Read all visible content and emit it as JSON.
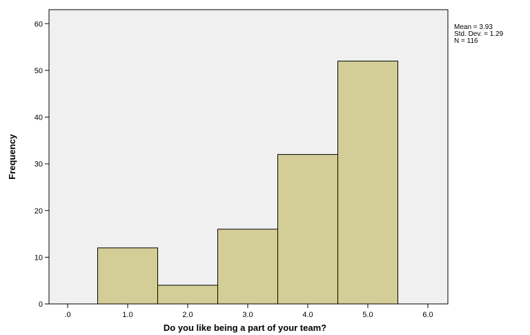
{
  "chart_data": {
    "type": "bar",
    "title": "",
    "xlabel": "Do you like being a part of your team?",
    "ylabel": "Frequency",
    "categories": [
      "1.0",
      "2.0",
      "3.0",
      "4.0",
      "5.0"
    ],
    "x": [
      1,
      2,
      3,
      4,
      5
    ],
    "values": [
      12,
      4,
      16,
      32,
      52
    ],
    "bin_width": 1,
    "xlim": [
      0,
      6
    ],
    "ylim": [
      0,
      63
    ],
    "x_ticks": [
      ".0",
      "1.0",
      "2.0",
      "3.0",
      "4.0",
      "5.0",
      "6.0"
    ],
    "y_ticks": [
      "0",
      "10",
      "20",
      "30",
      "40",
      "50",
      "60"
    ],
    "grid": false,
    "legend": "none",
    "colors": {
      "bar_fill": "#d3ce97",
      "bar_stroke": "#000000",
      "plot_background": "#f0f0f0"
    },
    "stats": {
      "mean": "Mean = 3.93",
      "std_dev": "Std. Dev. = 1.29",
      "n": "N = 116"
    }
  }
}
